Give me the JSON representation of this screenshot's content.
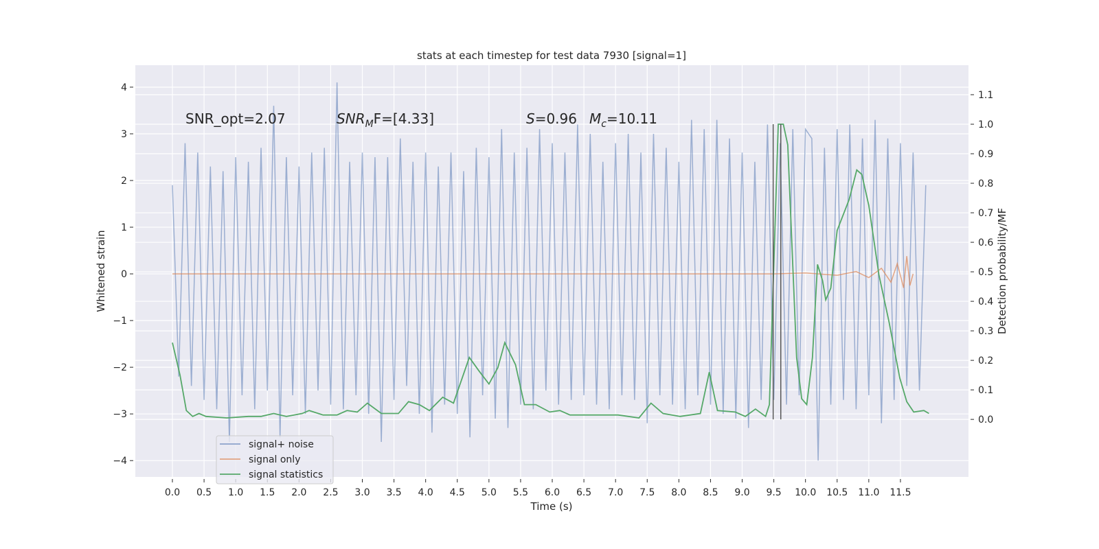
{
  "chart_data": {
    "type": "line",
    "title": "stats at each timestep for test data 7930 [signal=1]",
    "xlabel": "Time (s)",
    "ylabel": "Whitened strain",
    "y2label": "Detection probability/MF",
    "xlim": [
      -0.586,
      12.575
    ],
    "ylim": [
      -4.35,
      4.47
    ],
    "y2lim": [
      -0.195,
      1.2
    ],
    "xticks": [
      {
        "value": 0,
        "label": "0.0"
      },
      {
        "value": 0.5,
        "label": "0.5"
      },
      {
        "value": 1,
        "label": "1.0"
      },
      {
        "value": 1.5,
        "label": "1.5"
      },
      {
        "value": 2,
        "label": "2.0"
      },
      {
        "value": 2.5,
        "label": "2.5"
      },
      {
        "value": 3,
        "label": "3.0"
      },
      {
        "value": 3.5,
        "label": "3.5"
      },
      {
        "value": 4,
        "label": "4.0"
      },
      {
        "value": 4.5,
        "label": "4.5"
      },
      {
        "value": 5,
        "label": "5.0"
      },
      {
        "value": 5.5,
        "label": "5.5"
      },
      {
        "value": 6,
        "label": "6.0"
      },
      {
        "value": 6.5,
        "label": "6.5"
      },
      {
        "value": 7,
        "label": "7.0"
      },
      {
        "value": 7.5,
        "label": "7.5"
      },
      {
        "value": 8,
        "label": "8.0"
      },
      {
        "value": 8.5,
        "label": "8.5"
      },
      {
        "value": 9,
        "label": "9.0"
      },
      {
        "value": 9.5,
        "label": "9.5"
      },
      {
        "value": 10,
        "label": "10.0"
      },
      {
        "value": 10.5,
        "label": "10.5"
      },
      {
        "value": 11,
        "label": "11.0"
      },
      {
        "value": 11.5,
        "label": "11.5"
      }
    ],
    "yticks": [
      {
        "value": -4,
        "label": "−4"
      },
      {
        "value": -3,
        "label": "−3"
      },
      {
        "value": -2,
        "label": "−2"
      },
      {
        "value": -1,
        "label": "−1"
      },
      0,
      1,
      2,
      3,
      4
    ],
    "y2ticks": [
      {
        "value": 0,
        "label": "0.0"
      },
      {
        "value": 0.1,
        "label": "0.1"
      },
      {
        "value": 0.2,
        "label": "0.2"
      },
      {
        "value": 0.3,
        "label": "0.3"
      },
      {
        "value": 0.4,
        "label": "0.4"
      },
      {
        "value": 0.5,
        "label": "0.5"
      },
      {
        "value": 0.6,
        "label": "0.6"
      },
      {
        "value": 0.7,
        "label": "0.7"
      },
      {
        "value": 0.8,
        "label": "0.8"
      },
      {
        "value": 0.9,
        "label": "0.9"
      },
      {
        "value": 1,
        "label": "1.0"
      },
      {
        "value": 1.1,
        "label": "1.1"
      }
    ],
    "grid": true,
    "legend": "lower left",
    "series": [
      {
        "name": "signal+ noise",
        "color": "#4c72b0",
        "axis": "y",
        "x": [
          0,
          0.1,
          0.2,
          0.3,
          0.4,
          0.5,
          0.6,
          0.7,
          0.8,
          0.9,
          1,
          1.1,
          1.2,
          1.3,
          1.4,
          1.5,
          1.6,
          1.7,
          1.8,
          1.9,
          2,
          2.1,
          2.2,
          2.3,
          2.4,
          2.5,
          2.6,
          2.7,
          2.8,
          2.9,
          3,
          3.1,
          3.2,
          3.3,
          3.4,
          3.5,
          3.6,
          3.7,
          3.8,
          3.9,
          4,
          4.1,
          4.2,
          4.3,
          4.4,
          4.5,
          4.6,
          4.7,
          4.8,
          4.9,
          5,
          5.1,
          5.2,
          5.3,
          5.4,
          5.5,
          5.6,
          5.7,
          5.8,
          5.9,
          6,
          6.1,
          6.2,
          6.3,
          6.4,
          6.5,
          6.6,
          6.7,
          6.8,
          6.9,
          7,
          7.1,
          7.2,
          7.3,
          7.4,
          7.5,
          7.6,
          7.7,
          7.8,
          7.9,
          8,
          8.1,
          8.2,
          8.3,
          8.4,
          8.5,
          8.6,
          8.7,
          8.8,
          8.9,
          9,
          9.1,
          9.2,
          9.3,
          9.4,
          9.5,
          9.6,
          9.7,
          9.8,
          9.9,
          10,
          10.1,
          10.2,
          10.3,
          10.4,
          10.5,
          10.6,
          10.7,
          10.8,
          10.9,
          11,
          11.1,
          11.2,
          11.3,
          11.4,
          11.5,
          11.6,
          11.7,
          11.8,
          11.9
        ],
        "values": [
          1.9,
          -2.2,
          2.8,
          -2.4,
          2.6,
          -2.7,
          2.3,
          -2.9,
          2.2,
          -3.6,
          2.5,
          -2.6,
          2.4,
          -2.9,
          2.7,
          -2.5,
          3.6,
          -3.5,
          2.5,
          -2.6,
          2.3,
          -3.0,
          2.6,
          -2.5,
          2.7,
          -2.8,
          4.1,
          -2.9,
          2.4,
          -2.6,
          2.6,
          -3.0,
          2.5,
          -3.6,
          2.5,
          -2.7,
          2.9,
          -2.4,
          2.4,
          -3.0,
          2.6,
          -3.4,
          2.3,
          -2.8,
          2.6,
          -3.0,
          2.2,
          -3.5,
          2.7,
          -2.6,
          2.5,
          -3.1,
          3.1,
          -3.3,
          2.6,
          -2.8,
          2.7,
          -2.9,
          3.1,
          -2.5,
          2.8,
          -2.8,
          2.6,
          -2.7,
          3.2,
          -2.6,
          3.0,
          -2.8,
          2.4,
          -2.9,
          2.8,
          -2.6,
          3.0,
          -2.7,
          2.6,
          -3.2,
          3.0,
          -2.6,
          2.7,
          -2.8,
          2.4,
          -2.9,
          3.3,
          -2.6,
          3.1,
          -2.8,
          3.3,
          -3.0,
          2.9,
          -3.1,
          2.6,
          -3.3,
          2.4,
          -2.7,
          3.2,
          -2.7,
          2.8,
          -2.8,
          3.1,
          -2.6,
          3.1,
          2.9,
          -4.0,
          2.7,
          -2.8,
          3.1,
          -2.7,
          3.2,
          -2.9,
          2.9,
          -2.6,
          3.3,
          -3.2,
          2.9,
          -2.7,
          2.8,
          -2.4,
          2.6,
          -2.5,
          1.9
        ]
      },
      {
        "name": "signal only",
        "color": "#dd8452",
        "axis": "y",
        "x": [
          0,
          9.5,
          10,
          10.5,
          10.8,
          11,
          11.2,
          11.35,
          11.45,
          11.55,
          11.6,
          11.65,
          11.7
        ],
        "values": [
          0,
          0,
          0.02,
          -0.03,
          0.05,
          -0.08,
          0.12,
          -0.18,
          0.22,
          -0.3,
          0.38,
          -0.25,
          0
        ]
      },
      {
        "name": "signal statistics",
        "color": "#55a868",
        "axis": "y2",
        "x": [
          0,
          0.12,
          0.22,
          0.32,
          0.42,
          0.53,
          0.86,
          1.2,
          1.4,
          1.6,
          1.8,
          2.05,
          2.16,
          2.38,
          2.6,
          2.76,
          2.92,
          3.08,
          3.3,
          3.57,
          3.73,
          3.9,
          4.06,
          4.27,
          4.44,
          4.69,
          4.84,
          5.0,
          5.14,
          5.25,
          5.42,
          5.56,
          5.74,
          5.96,
          6.12,
          6.28,
          6.72,
          7.04,
          7.37,
          7.56,
          7.75,
          8.02,
          8.34,
          8.48,
          8.61,
          8.89,
          9.05,
          9.21,
          9.37,
          9.43,
          9.57,
          9.65,
          9.72,
          9.86,
          9.94,
          10.02,
          10.11,
          10.19,
          10.27,
          10.32,
          10.4,
          10.5,
          10.69,
          10.81,
          10.89,
          11.0,
          11.16,
          11.32,
          11.49,
          11.6,
          11.71,
          11.87,
          11.95
        ],
        "values": [
          0.26,
          0.15,
          0.03,
          0.01,
          0.02,
          0.01,
          0.005,
          0.01,
          0.01,
          0.02,
          0.01,
          0.02,
          0.03,
          0.015,
          0.015,
          0.03,
          0.025,
          0.055,
          0.02,
          0.02,
          0.06,
          0.05,
          0.03,
          0.075,
          0.055,
          0.21,
          0.165,
          0.12,
          0.175,
          0.26,
          0.185,
          0.05,
          0.05,
          0.025,
          0.03,
          0.015,
          0.015,
          0.015,
          0.005,
          0.055,
          0.02,
          0.01,
          0.02,
          0.16,
          0.03,
          0.025,
          0.01,
          0.035,
          0.01,
          0.05,
          1.0,
          1.0,
          0.93,
          0.21,
          0.07,
          0.05,
          0.21,
          0.525,
          0.47,
          0.405,
          0.445,
          0.64,
          0.745,
          0.845,
          0.83,
          0.725,
          0.49,
          0.33,
          0.14,
          0.06,
          0.025,
          0.03,
          0.02
        ]
      }
    ],
    "vlines": [
      9.49,
      9.61
    ],
    "vline_color": "#555555",
    "vline_range": [
      0,
      1
    ],
    "annotations": [
      {
        "text": "SNR_opt=2.07"
      },
      {
        "text": "SNR",
        "sub": "M",
        "tail": "F=[4.33]"
      },
      {
        "text": "S",
        "tail": "=0.96"
      },
      {
        "text": "M",
        "sub": "c",
        "tail": "=10.11"
      }
    ]
  }
}
